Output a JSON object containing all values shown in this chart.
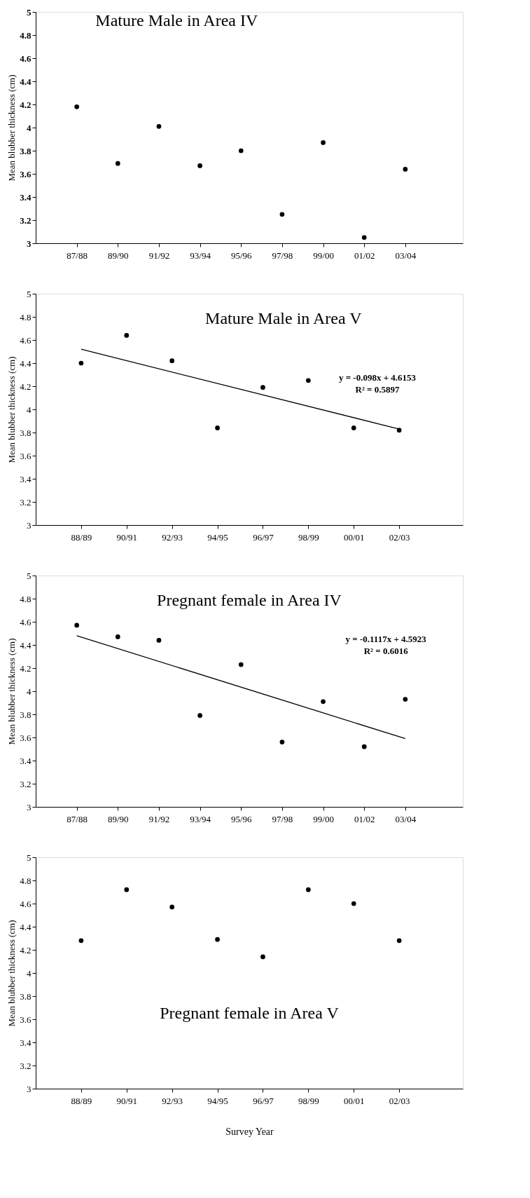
{
  "chart_data": [
    {
      "type": "scatter",
      "title": "Mature Male in Area IV",
      "ylabel": "Mean blubber thickness (cm)",
      "categories": [
        "87/88",
        "89/90",
        "91/92",
        "93/94",
        "95/96",
        "97/98",
        "99/00",
        "01/02",
        "03/04"
      ],
      "series": [
        {
          "color": "#000000",
          "values": [
            4.18,
            3.69,
            4.01,
            3.67,
            3.8,
            3.25,
            3.87,
            3.05,
            3.64
          ]
        }
      ],
      "ylim": [
        3,
        5
      ],
      "yticks": [
        3,
        3.2,
        3.4,
        3.6,
        3.8,
        4,
        4.2,
        4.4,
        4.6,
        4.8,
        5
      ],
      "marker": "circle",
      "grid": false
    },
    {
      "type": "scatter",
      "title": "Mature Male in Area V",
      "ylabel": "Mean blubber thickness  (cm)",
      "categories": [
        "88/89",
        "90/91",
        "92/93",
        "94/95",
        "96/97",
        "98/99",
        "00/01",
        "02/03"
      ],
      "series": [
        {
          "color": "#000000",
          "values": [
            4.4,
            4.64,
            4.42,
            3.84,
            4.19,
            4.25,
            3.84,
            3.82
          ]
        },
        {
          "type": "line",
          "marker": "none",
          "line_style": "solid",
          "color": "#000000",
          "x": [
            "88/89",
            "02/03"
          ],
          "values": [
            4.52,
            3.83
          ]
        }
      ],
      "ylim": [
        3,
        5
      ],
      "yticks": [
        3,
        3.2,
        3.4,
        3.6,
        3.8,
        4,
        4.2,
        4.4,
        4.6,
        4.8,
        5
      ],
      "marker": "circle",
      "grid": false,
      "annotations": [
        "y = -0.098x + 4.6153",
        "R² = 0.5897"
      ]
    },
    {
      "type": "scatter",
      "title": "Pregnant female in Area IV",
      "ylabel": "Mean blubber thickness (cm)",
      "categories": [
        "87/88",
        "89/90",
        "91/92",
        "93/94",
        "95/96",
        "97/98",
        "99/00",
        "01/02",
        "03/04"
      ],
      "series": [
        {
          "color": "#000000",
          "values": [
            4.57,
            4.47,
            4.44,
            3.79,
            4.23,
            3.56,
            3.91,
            3.52,
            3.93
          ]
        },
        {
          "type": "line",
          "marker": "none",
          "line_style": "solid",
          "color": "#000000",
          "x": [
            "87/88",
            "03/04"
          ],
          "values": [
            4.48,
            3.59
          ]
        }
      ],
      "ylim": [
        3,
        5
      ],
      "yticks": [
        3,
        3.2,
        3.4,
        3.6,
        3.8,
        4,
        4.2,
        4.4,
        4.6,
        4.8,
        5
      ],
      "marker": "circle",
      "grid": false,
      "annotations": [
        "y = -0.1117x + 4.5923",
        "R² = 0.6016"
      ]
    },
    {
      "type": "scatter",
      "title": "Pregnant female in Area V",
      "ylabel": "Mean blubber thickness (cm)",
      "xlabel": "Survey Year",
      "categories": [
        "88/89",
        "90/91",
        "92/93",
        "94/95",
        "96/97",
        "98/99",
        "00/01",
        "02/03"
      ],
      "series": [
        {
          "color": "#000000",
          "values": [
            4.28,
            4.72,
            4.57,
            4.29,
            4.14,
            4.72,
            4.6,
            4.28
          ]
        }
      ],
      "ylim": [
        3,
        5
      ],
      "yticks": [
        3,
        3.2,
        3.4,
        3.6,
        3.8,
        4,
        4.2,
        4.4,
        4.6,
        4.8,
        5
      ],
      "marker": "circle",
      "grid": false
    }
  ]
}
